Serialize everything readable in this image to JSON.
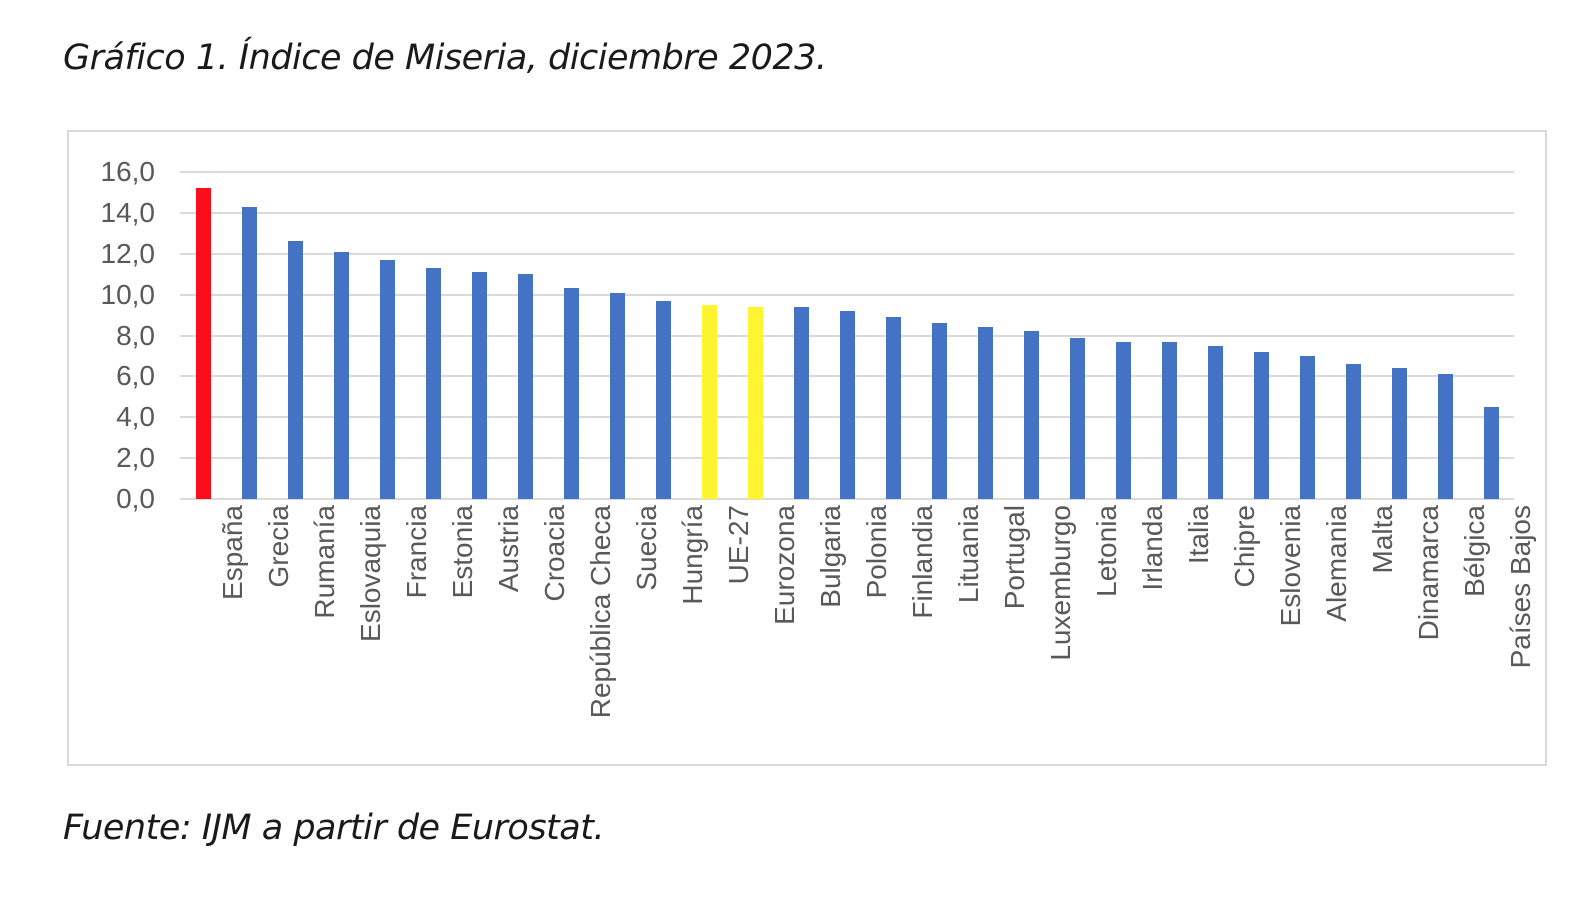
{
  "title": "Gráfico 1. Índice de Miseria, diciembre 2023.",
  "source": "Fuente: IJM a partir de Eurostat.",
  "chart_data": {
    "type": "bar",
    "title": "Gráfico 1. Índice de Miseria, diciembre 2023.",
    "xlabel": "",
    "ylabel": "",
    "ylim": [
      0,
      16
    ],
    "ytick_step": 2,
    "ytick_labels": [
      "0,0",
      "2,0",
      "4,0",
      "6,0",
      "8,0",
      "10,0",
      "12,0",
      "14,0",
      "16,0"
    ],
    "grid": true,
    "legend": "none",
    "categories": [
      "España",
      "Grecia",
      "Rumanía",
      "Eslovaquia",
      "Francia",
      "Estonia",
      "Austria",
      "Croacia",
      "República Checa",
      "Suecia",
      "Hungría",
      "UE-27",
      "Eurozona",
      "Bulgaria",
      "Polonia",
      "Finlandia",
      "Lituania",
      "Portugal",
      "Luxemburgo",
      "Letonia",
      "Irlanda",
      "Italia",
      "Chipre",
      "Eslovenia",
      "Alemania",
      "Malta",
      "Dinamarca",
      "Bélgica",
      "Países Bajos"
    ],
    "values": [
      15.2,
      14.3,
      12.6,
      12.1,
      11.7,
      11.3,
      11.1,
      11.0,
      10.3,
      10.1,
      9.7,
      9.5,
      9.4,
      9.4,
      9.2,
      8.9,
      8.6,
      8.4,
      8.2,
      7.9,
      7.7,
      7.7,
      7.5,
      7.2,
      7.0,
      6.6,
      6.4,
      6.1,
      4.5
    ],
    "highlights": {
      "red": [
        "España"
      ],
      "yellow": [
        "UE-27",
        "Eurozona"
      ]
    },
    "colors": {
      "default_bar": "#4472C4",
      "highlight_red": "#FB0D1C",
      "highlight_yellow": "#FEF42F",
      "gridline": "#DADADA",
      "axis_text": "#595959",
      "frame_border": "#D9D9D9",
      "text": "#1A1A1A"
    }
  }
}
